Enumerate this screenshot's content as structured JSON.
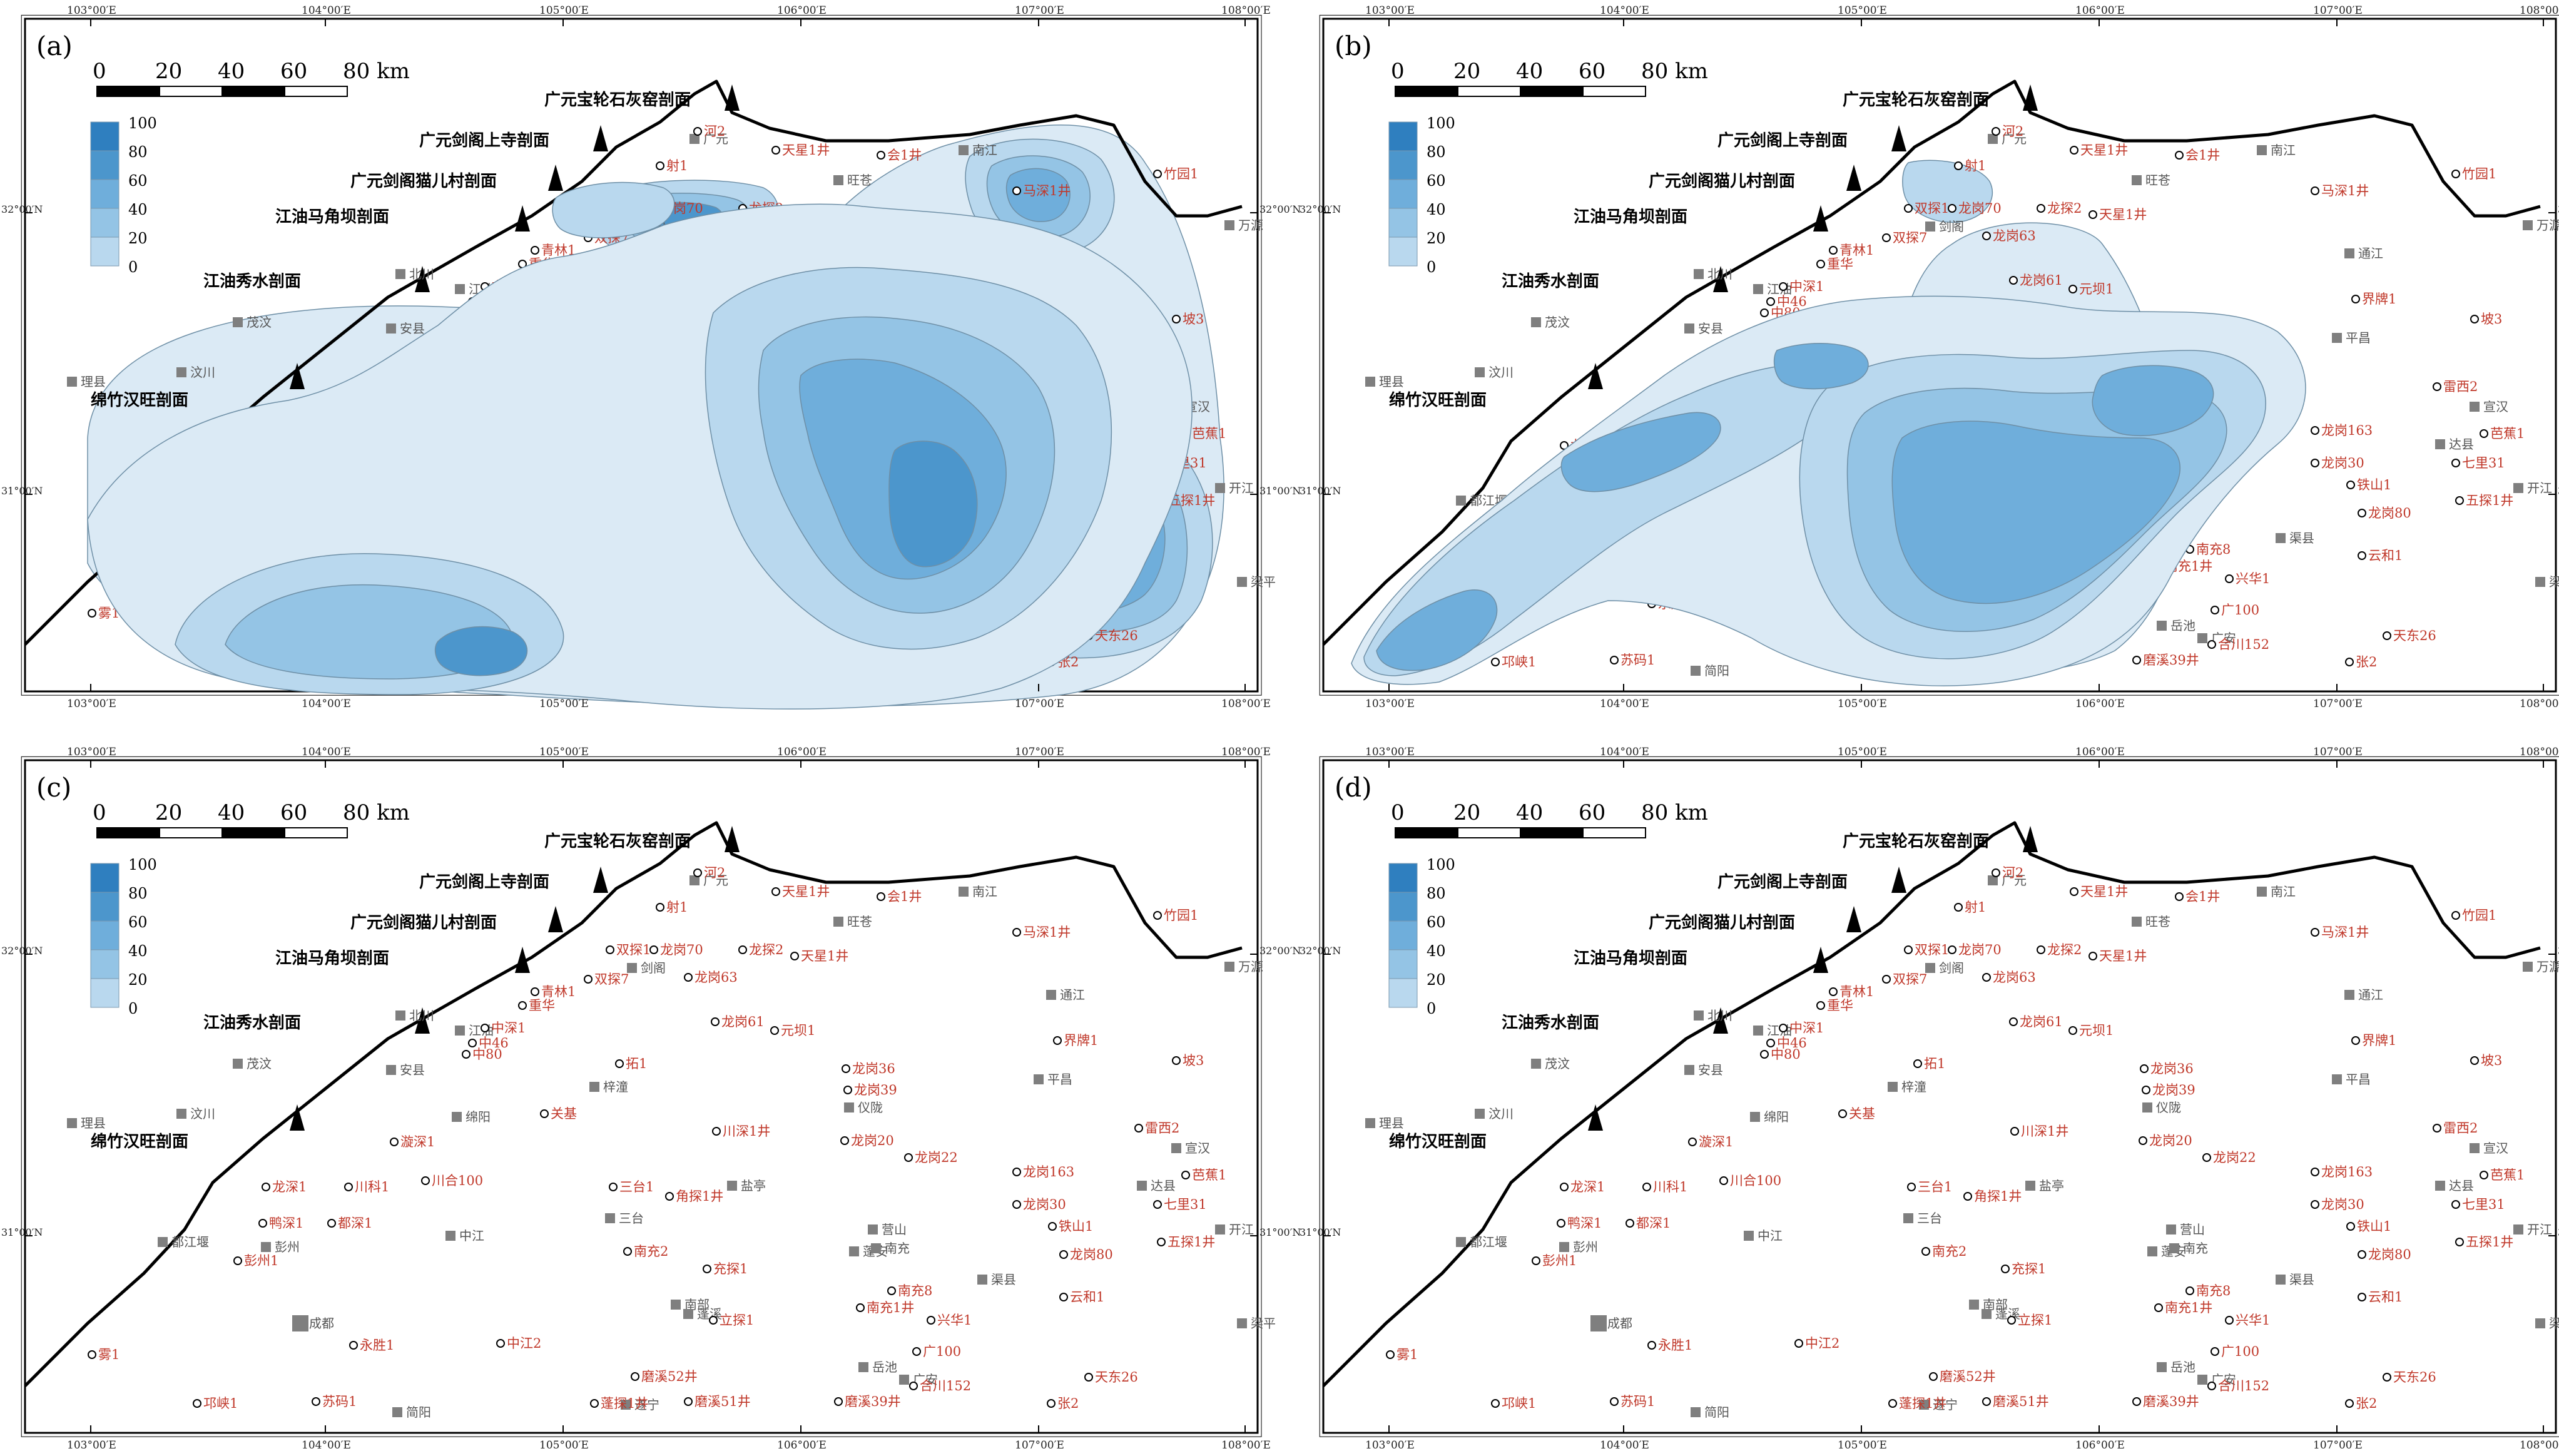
{
  "panels": [
    {
      "label": "(a)"
    },
    {
      "label": "(b)"
    },
    {
      "label": "(c)"
    },
    {
      "label": "(d)"
    }
  ],
  "scale_bar": {
    "ticks": [
      "0",
      "20",
      "40",
      "60",
      "80 km"
    ]
  },
  "legend": {
    "ticks": [
      "100",
      "80",
      "60",
      "40",
      "20",
      "0"
    ],
    "colors": [
      "#dbeaf5",
      "#b9d8ee",
      "#94c4e5",
      "#6faedb",
      "#4c96cc",
      "#2f7fbf"
    ]
  },
  "longitudes": [
    "103°00′E",
    "104°00′E",
    "105°00′E",
    "106°00′E",
    "107°00′E",
    "108°00′E"
  ],
  "latitudes": [
    "32°00′N",
    "31°00′N"
  ],
  "sections": [
    "广元宝轮石灰窑剖面",
    "广元剑阁上寺剖面",
    "广元剑阁猫儿村剖面",
    "江油马角坝剖面",
    "江油秀水剖面",
    "绵竹汉旺剖面"
  ],
  "cities": [
    "广元",
    "旺苍",
    "南江",
    "通江",
    "万源",
    "北川",
    "江油",
    "剑阁",
    "茂汶",
    "安县",
    "梓潼",
    "汶川",
    "理县",
    "绵阳",
    "盐亭",
    "三台",
    "仪陇",
    "平昌",
    "宣汉",
    "达县",
    "开江",
    "都江堰",
    "彭州",
    "中江",
    "南部",
    "营山",
    "蓬安",
    "渠县",
    "成都",
    "蓬溪",
    "南充",
    "梁平",
    "遂宁",
    "岳池",
    "广安",
    "简阳"
  ],
  "wells": [
    "河2",
    "天星1井",
    "会1井",
    "竹园1",
    "射1",
    "双探1",
    "龙岗70",
    "龙探2",
    "天星1井",
    "马深1井",
    "双探7",
    "龙岗63",
    "青林1",
    "重华",
    "中深1",
    "中46",
    "中80",
    "龙岗61",
    "元坝1",
    "界牌1",
    "拓1",
    "坡3",
    "龙岗36",
    "龙岗39",
    "漩深1",
    "关基",
    "川深1井",
    "龙岗20",
    "雷西2",
    "龙深1",
    "川科1",
    "川合100",
    "龙岗22",
    "龙岗163",
    "芭蕉1",
    "三台1",
    "鸭深1",
    "都深1",
    "角探1井",
    "龙岗30",
    "铁山1",
    "七里31",
    "五探1井",
    "彭州1",
    "南充2",
    "龙岗80",
    "充探1",
    "南充8",
    "南充1井",
    "立探1",
    "兴华1",
    "云和1",
    "永胜1",
    "中江2",
    "广100",
    "雾1",
    "邛峡1",
    "苏码1",
    "磨溪52井",
    "蓬探1井",
    "磨溪51井",
    "磨溪39井",
    "合川152",
    "天东26",
    "张2"
  ]
}
